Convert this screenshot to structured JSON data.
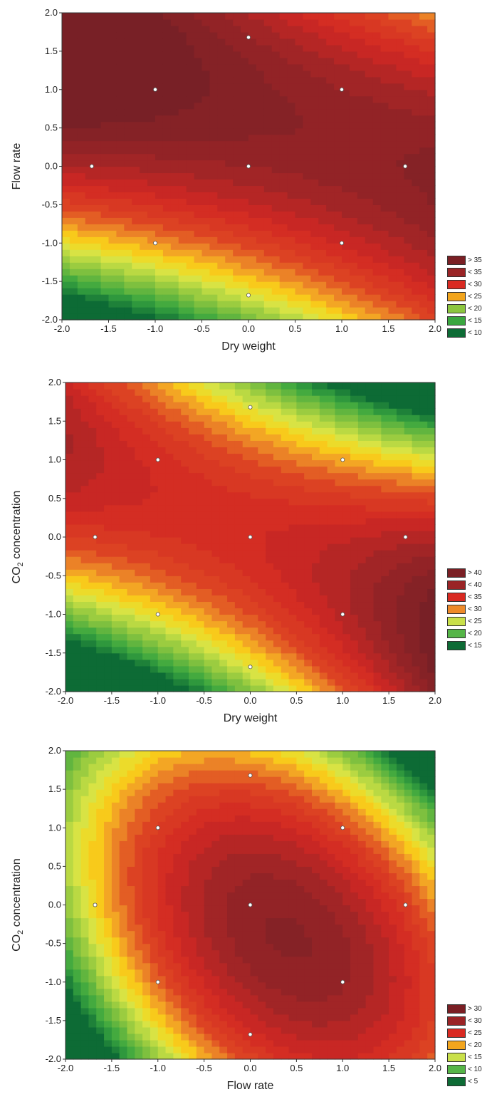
{
  "chart_data": [
    {
      "type": "contour",
      "xlabel": "Dry weight",
      "ylabel": "Flow rate",
      "xlim": [
        -2.0,
        2.0
      ],
      "ylim": [
        -2.0,
        2.0
      ],
      "ticks": [
        "-2.0",
        "-1.5",
        "-1.0",
        "-0.5",
        "0.0",
        "0.5",
        "1.0",
        "1.5",
        "2.0"
      ],
      "tick_values": [
        -2.0,
        -1.5,
        -1.0,
        -0.5,
        0.0,
        0.5,
        1.0,
        1.5,
        2.0
      ],
      "legend": [
        {
          "label": "> 35",
          "color": "#7a1f24"
        },
        {
          "label": "< 35",
          "color": "#9a2426"
        },
        {
          "label": "< 30",
          "color": "#d92a22"
        },
        {
          "label": "< 25",
          "color": "#f2a51d"
        },
        {
          "label": "< 20",
          "color": "#8cc63f"
        },
        {
          "label": "< 15",
          "color": "#3aa63f"
        },
        {
          "label": "< 10",
          "color": "#0d6b35"
        }
      ],
      "surface": {
        "b0": 36,
        "bx": 1,
        "by": 5.5,
        "bxx": 0,
        "byy": -3.2,
        "bxy": -3.2,
        "min": 5,
        "max": 40
      },
      "design_points": [
        [
          -1,
          1
        ],
        [
          1,
          1
        ],
        [
          0,
          1.68
        ],
        [
          -1.68,
          0
        ],
        [
          0,
          0
        ],
        [
          1.68,
          0
        ],
        [
          -1,
          -1
        ],
        [
          1,
          -1
        ],
        [
          0,
          -1.68
        ]
      ]
    },
    {
      "type": "contour",
      "xlabel": "Dry weight",
      "ylabel_main": "CO",
      "ylabel_sub": "2",
      "ylabel_rest": " concentration",
      "xlim": [
        -2.0,
        2.0
      ],
      "ylim": [
        -2.0,
        2.0
      ],
      "ticks": [
        "-2.0",
        "-1.5",
        "-1.0",
        "-0.5",
        "0.0",
        "0.5",
        "1.0",
        "1.5",
        "2.0"
      ],
      "tick_values": [
        -2.0,
        -1.5,
        -1.0,
        -0.5,
        0.0,
        0.5,
        1.0,
        1.5,
        2.0
      ],
      "legend": [
        {
          "label": "> 40",
          "color": "#7a1f24"
        },
        {
          "label": "< 40",
          "color": "#9a2426"
        },
        {
          "label": "< 35",
          "color": "#d92a22"
        },
        {
          "label": "< 30",
          "color": "#ee8a2a"
        },
        {
          "label": "< 25",
          "color": "#c9e04a"
        },
        {
          "label": "< 20",
          "color": "#55b547"
        },
        {
          "label": "< 15",
          "color": "#0d6b35"
        }
      ],
      "surface": {
        "b0": 36,
        "bx": 1.5,
        "by": 0,
        "bxx": 0,
        "byy": -4.5,
        "bxy": -5.5,
        "min": 10,
        "max": 45
      },
      "design_points": [
        [
          -1,
          1
        ],
        [
          1,
          1
        ],
        [
          0,
          1.68
        ],
        [
          -1.68,
          0
        ],
        [
          0,
          0
        ],
        [
          1.68,
          0
        ],
        [
          -1,
          -1
        ],
        [
          1,
          -1
        ],
        [
          0,
          -1.68
        ]
      ]
    },
    {
      "type": "contour",
      "xlabel": "Flow rate",
      "ylabel_main": "CO",
      "ylabel_sub": "2",
      "ylabel_rest": " concentration",
      "xlim": [
        -2.0,
        2.0
      ],
      "ylim": [
        -2.0,
        2.0
      ],
      "ticks": [
        "-2.0",
        "-1.5",
        "-1.0",
        "-0.5",
        "0.0",
        "0.5",
        "1.0",
        "1.5",
        "2.0"
      ],
      "tick_values": [
        -2.0,
        -1.5,
        -1.0,
        -0.5,
        0.0,
        0.5,
        1.0,
        1.5,
        2.0
      ],
      "legend": [
        {
          "label": "> 30",
          "color": "#7a1f24"
        },
        {
          "label": "< 30",
          "color": "#9a2426"
        },
        {
          "label": "< 25",
          "color": "#d92a22"
        },
        {
          "label": "< 20",
          "color": "#f2a51d"
        },
        {
          "label": "< 15",
          "color": "#c9e04a"
        },
        {
          "label": "< 10",
          "color": "#55b547"
        },
        {
          "label": "< 5",
          "color": "#0d6b35"
        }
      ],
      "surface": {
        "b0": 32,
        "bx": 2.5,
        "by": -1.5,
        "bxx": -4.6,
        "byy": -3.2,
        "bxy": -3.0,
        "min": 0,
        "max": 35
      },
      "design_points": [
        [
          -1,
          1
        ],
        [
          1,
          1
        ],
        [
          0,
          1.68
        ],
        [
          -1.68,
          0
        ],
        [
          0,
          0
        ],
        [
          1.68,
          0
        ],
        [
          -1,
          -1
        ],
        [
          1,
          -1
        ],
        [
          0,
          -1.68
        ]
      ]
    }
  ]
}
